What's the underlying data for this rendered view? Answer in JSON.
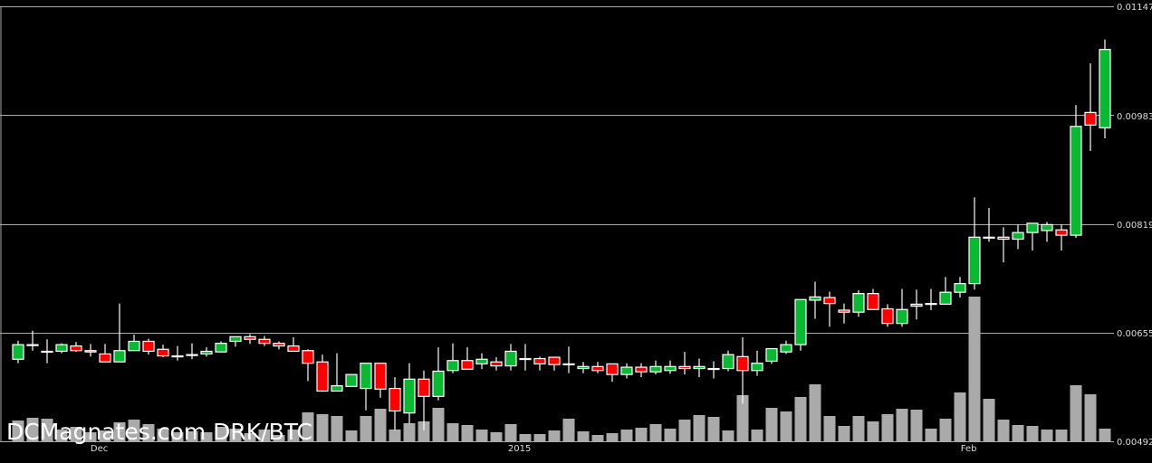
{
  "chart_data": {
    "type": "candlestick",
    "title": "",
    "watermark": "DCMagnates.com DRK/BTC",
    "y_axis": {
      "position": "right",
      "range": [
        0.00492,
        0.01147
      ],
      "ticks": [
        "0.01147",
        "0.00983",
        "0.00819",
        "0.00655",
        "0.00492"
      ],
      "tick_values": [
        0.01147,
        0.00983,
        0.00819,
        0.00655,
        0.00492
      ],
      "grid": true
    },
    "x_ticks": [
      {
        "label": "Dec",
        "candle_index": 5.6
      },
      {
        "label": "2015",
        "candle_index": 34.6
      },
      {
        "label": "Feb",
        "candle_index": 65.6
      }
    ],
    "colors": {
      "up": "#0cb833",
      "down": "#ff0000",
      "outline": "#ffffff",
      "volume": "#aaaaaa",
      "grid": "#aaaaaa",
      "background": "#000000"
    },
    "candle_fields": [
      "open",
      "high",
      "low",
      "close"
    ],
    "candles": [
      [
        0.00615,
        0.00643,
        0.00609,
        0.00637
      ],
      [
        0.00637,
        0.00658,
        0.00628,
        0.00637
      ],
      [
        0.00627,
        0.00645,
        0.00609,
        0.00627
      ],
      [
        0.00627,
        0.00639,
        0.00624,
        0.00637
      ],
      [
        0.00635,
        0.00641,
        0.00626,
        0.00628
      ],
      [
        0.00628,
        0.00638,
        0.00619,
        0.00626
      ],
      [
        0.00623,
        0.00638,
        0.00611,
        0.00611
      ],
      [
        0.00611,
        0.00699,
        0.00611,
        0.00628
      ],
      [
        0.00628,
        0.00652,
        0.00628,
        0.00642
      ],
      [
        0.00642,
        0.00646,
        0.00622,
        0.00627
      ],
      [
        0.0063,
        0.00637,
        0.00618,
        0.0062
      ],
      [
        0.0062,
        0.00635,
        0.00613,
        0.0062
      ],
      [
        0.00622,
        0.00639,
        0.00615,
        0.00622
      ],
      [
        0.00623,
        0.00633,
        0.00619,
        0.00627
      ],
      [
        0.00626,
        0.00642,
        0.00626,
        0.00639
      ],
      [
        0.00642,
        0.00649,
        0.00634,
        0.00649
      ],
      [
        0.00649,
        0.00653,
        0.00638,
        0.00645
      ],
      [
        0.00645,
        0.0065,
        0.00635,
        0.00639
      ],
      [
        0.00639,
        0.00642,
        0.0063,
        0.00635
      ],
      [
        0.00635,
        0.00648,
        0.00627,
        0.00627
      ],
      [
        0.00628,
        0.0063,
        0.00582,
        0.00609
      ],
      [
        0.00611,
        0.00622,
        0.00566,
        0.00567
      ],
      [
        0.00567,
        0.00624,
        0.00567,
        0.00575
      ],
      [
        0.00574,
        0.00592,
        0.00574,
        0.00592
      ],
      [
        0.00571,
        0.00609,
        0.00538,
        0.00609
      ],
      [
        0.00609,
        0.00609,
        0.00557,
        0.0057
      ],
      [
        0.00571,
        0.00588,
        0.00508,
        0.00537
      ],
      [
        0.00534,
        0.00609,
        0.00518,
        0.00585
      ],
      [
        0.00585,
        0.00598,
        0.00508,
        0.00559
      ],
      [
        0.00559,
        0.00633,
        0.00553,
        0.00597
      ],
      [
        0.00598,
        0.00639,
        0.00594,
        0.00613
      ],
      [
        0.00613,
        0.00633,
        0.006,
        0.006
      ],
      [
        0.00608,
        0.00624,
        0.006,
        0.00615
      ],
      [
        0.00611,
        0.00618,
        0.00598,
        0.00605
      ],
      [
        0.00605,
        0.00638,
        0.00598,
        0.00627
      ],
      [
        0.00616,
        0.00638,
        0.00598,
        0.00616
      ],
      [
        0.00616,
        0.00619,
        0.00598,
        0.00608
      ],
      [
        0.00618,
        0.00618,
        0.00598,
        0.00607
      ],
      [
        0.00608,
        0.00634,
        0.00594,
        0.00608
      ],
      [
        0.00601,
        0.00611,
        0.00594,
        0.00604
      ],
      [
        0.00604,
        0.00611,
        0.00594,
        0.00598
      ],
      [
        0.00608,
        0.00608,
        0.00581,
        0.00592
      ],
      [
        0.00592,
        0.00609,
        0.00586,
        0.00603
      ],
      [
        0.00603,
        0.00609,
        0.00588,
        0.00596
      ],
      [
        0.00596,
        0.00613,
        0.00592,
        0.00604
      ],
      [
        0.00598,
        0.00613,
        0.00593,
        0.00604
      ],
      [
        0.00604,
        0.00626,
        0.00592,
        0.00601
      ],
      [
        0.00601,
        0.00616,
        0.00588,
        0.00604
      ],
      [
        0.00601,
        0.00612,
        0.00586,
        0.00601
      ],
      [
        0.00601,
        0.00628,
        0.00597,
        0.00622
      ],
      [
        0.00619,
        0.00648,
        0.00548,
        0.00598
      ],
      [
        0.00598,
        0.00628,
        0.0059,
        0.00609
      ],
      [
        0.00612,
        0.00631,
        0.00608,
        0.00631
      ],
      [
        0.00626,
        0.00643,
        0.00623,
        0.00637
      ],
      [
        0.00637,
        0.00705,
        0.00628,
        0.00705
      ],
      [
        0.00704,
        0.00732,
        0.00676,
        0.00709
      ],
      [
        0.00708,
        0.00717,
        0.00664,
        0.00699
      ],
      [
        0.00689,
        0.00699,
        0.00669,
        0.00686
      ],
      [
        0.00686,
        0.00719,
        0.00679,
        0.00714
      ],
      [
        0.00714,
        0.00721,
        0.00689,
        0.0069
      ],
      [
        0.00691,
        0.00698,
        0.00664,
        0.00669
      ],
      [
        0.00669,
        0.00721,
        0.00664,
        0.0069
      ],
      [
        0.00695,
        0.0072,
        0.00675,
        0.00698
      ],
      [
        0.00699,
        0.00721,
        0.00689,
        0.00699
      ],
      [
        0.00698,
        0.00739,
        0.00697,
        0.00716
      ],
      [
        0.00716,
        0.00739,
        0.00708,
        0.00729
      ],
      [
        0.00729,
        0.00859,
        0.0072,
        0.00799
      ],
      [
        0.00799,
        0.00843,
        0.00792,
        0.00799
      ],
      [
        0.00799,
        0.00814,
        0.00761,
        0.00796
      ],
      [
        0.00796,
        0.00818,
        0.00781,
        0.00806
      ],
      [
        0.00806,
        0.0082,
        0.00779,
        0.0082
      ],
      [
        0.00809,
        0.00822,
        0.00792,
        0.00818
      ],
      [
        0.0081,
        0.00818,
        0.00779,
        0.00802
      ],
      [
        0.00802,
        0.00998,
        0.00798,
        0.00966
      ],
      [
        0.00987,
        0.01061,
        0.00929,
        0.00968
      ],
      [
        0.00964,
        0.01097,
        0.00948,
        0.01082
      ]
    ],
    "volume_relative": [
      23,
      26,
      25,
      13,
      16,
      10,
      12,
      21,
      24,
      19,
      14,
      10,
      11,
      10,
      16,
      14,
      9,
      13,
      7,
      13,
      32,
      30,
      28,
      12,
      28,
      36,
      13,
      20,
      22,
      37,
      20,
      18,
      13,
      10,
      19,
      8,
      8,
      12,
      25,
      11,
      7,
      9,
      13,
      15,
      19,
      14,
      24,
      29,
      27,
      12,
      51,
      13,
      37,
      33,
      49,
      63,
      28,
      17,
      28,
      22,
      30,
      36,
      35,
      14,
      25,
      54,
      160,
      47,
      24,
      18,
      17,
      13,
      13,
      62,
      52,
      14
    ]
  }
}
